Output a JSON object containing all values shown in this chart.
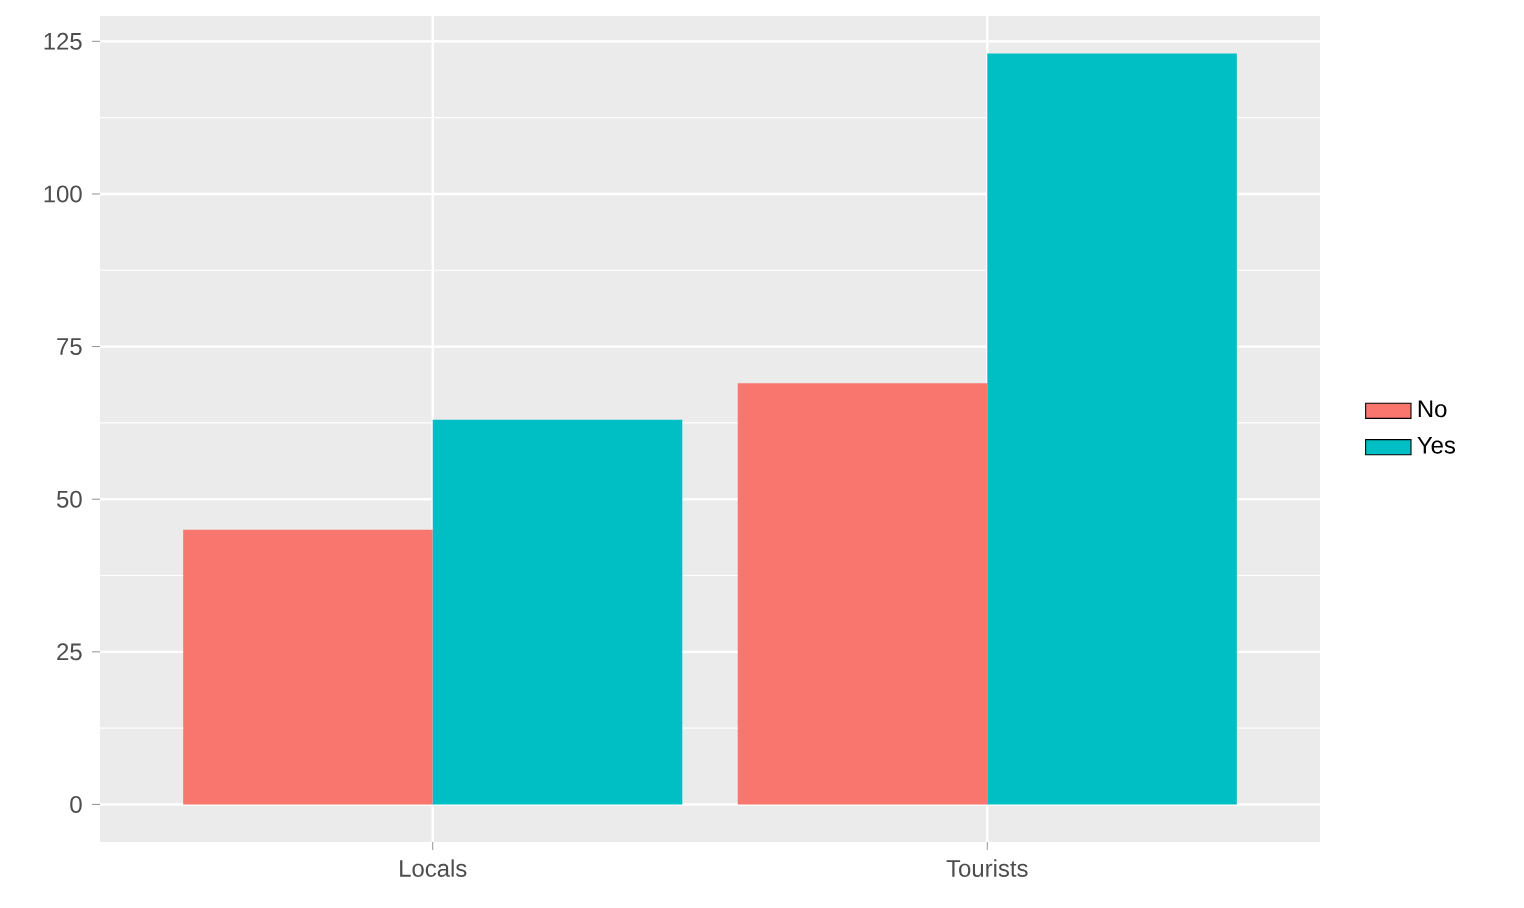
{
  "chart_data": {
    "type": "bar",
    "categories": [
      "Locals",
      "Tourists"
    ],
    "series": [
      {
        "name": "No",
        "color": "#f8766d",
        "values": [
          45,
          69
        ]
      },
      {
        "name": "Yes",
        "color": "#00bfc4",
        "values": [
          63,
          123
        ]
      }
    ],
    "ylim": [
      -6.15,
      129.15
    ],
    "yticks": [
      0,
      25,
      50,
      75,
      100,
      125
    ],
    "grid": true,
    "legend": "right"
  }
}
